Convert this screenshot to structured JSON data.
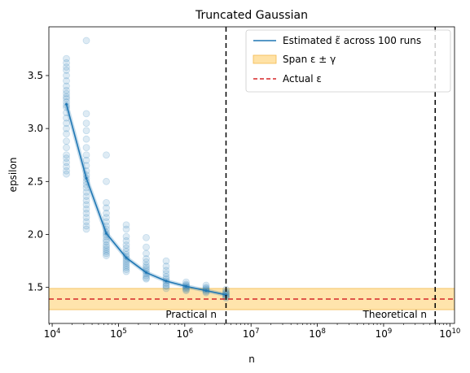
{
  "chart_data": {
    "type": "scatter",
    "title": "Truncated Gaussian",
    "xlabel": "n",
    "ylabel": "epsilon",
    "xscale": "log",
    "xlim_log10": [
      3.95,
      10.07
    ],
    "ylim": [
      1.16,
      3.96
    ],
    "x_ticks": [
      {
        "exp": 4,
        "label": "10",
        "sup": "4"
      },
      {
        "exp": 5,
        "label": "10",
        "sup": "5"
      },
      {
        "exp": 6,
        "label": "10",
        "sup": "6"
      },
      {
        "exp": 7,
        "label": "10",
        "sup": "7"
      },
      {
        "exp": 8,
        "label": "10",
        "sup": "8"
      },
      {
        "exp": 9,
        "label": "10",
        "sup": "9"
      },
      {
        "exp": 10,
        "label": "10",
        "sup": "10"
      }
    ],
    "y_ticks": [
      {
        "value": 1.5,
        "label": "1.5"
      },
      {
        "value": 2.0,
        "label": "2.0"
      },
      {
        "value": 2.5,
        "label": "2.5"
      },
      {
        "value": 3.0,
        "label": "3.0"
      },
      {
        "value": 3.5,
        "label": "3.5"
      }
    ],
    "estimated_line": {
      "name": "Estimated ε̃ across 100 runs",
      "color": "#1f77b4",
      "x": [
        16384,
        32768,
        65536,
        131072,
        262144,
        524288,
        1048576,
        2097152,
        4194304
      ],
      "y": [
        3.23,
        2.53,
        2.01,
        1.78,
        1.64,
        1.56,
        1.51,
        1.47,
        1.43
      ]
    },
    "runs_scatter": {
      "color": "#1f77b4",
      "groups": [
        {
          "x": 16384,
          "y": [
            3.66,
            3.62,
            3.58,
            3.55,
            3.5,
            3.45,
            3.4,
            3.36,
            3.33,
            3.3,
            3.28,
            3.25,
            3.22,
            3.2,
            3.15,
            3.1,
            3.05,
            3.0,
            2.95,
            2.88,
            2.82,
            2.75,
            2.72,
            2.68,
            2.64,
            2.6,
            2.57
          ]
        },
        {
          "x": 32768,
          "y": [
            3.83,
            3.14,
            3.05,
            2.98,
            2.9,
            2.82,
            2.75,
            2.7,
            2.65,
            2.6,
            2.56,
            2.53,
            2.5,
            2.47,
            2.44,
            2.4,
            2.36,
            2.32,
            2.28,
            2.24,
            2.2,
            2.16,
            2.12,
            2.08,
            2.05
          ]
        },
        {
          "x": 65536,
          "y": [
            2.75,
            2.5,
            2.3,
            2.25,
            2.2,
            2.16,
            2.12,
            2.08,
            2.05,
            2.02,
            2.0,
            1.98,
            1.95,
            1.93,
            1.9,
            1.88,
            1.86,
            1.84,
            1.82,
            1.8
          ]
        },
        {
          "x": 131072,
          "y": [
            2.09,
            2.05,
            1.98,
            1.94,
            1.9,
            1.87,
            1.84,
            1.81,
            1.79,
            1.77,
            1.75,
            1.73,
            1.71,
            1.69,
            1.67,
            1.65
          ]
        },
        {
          "x": 262144,
          "y": [
            1.97,
            1.88,
            1.82,
            1.77,
            1.74,
            1.71,
            1.69,
            1.67,
            1.65,
            1.63,
            1.61,
            1.59,
            1.58
          ]
        },
        {
          "x": 524288,
          "y": [
            1.75,
            1.7,
            1.66,
            1.63,
            1.6,
            1.58,
            1.56,
            1.54,
            1.52,
            1.51,
            1.49
          ]
        },
        {
          "x": 1048576,
          "y": [
            1.55,
            1.53,
            1.52,
            1.51,
            1.5,
            1.49,
            1.48,
            1.47
          ]
        },
        {
          "x": 2097152,
          "y": [
            1.52,
            1.5,
            1.49,
            1.48,
            1.47,
            1.46,
            1.45
          ]
        },
        {
          "x": 4194304,
          "y": [
            1.48,
            1.46,
            1.45,
            1.44,
            1.43,
            1.42,
            1.41,
            1.4
          ]
        }
      ]
    },
    "span": {
      "name": "Span ε ± γ",
      "low": 1.29,
      "high": 1.49,
      "color": "#ffd580",
      "edge": "#f3b94d"
    },
    "actual": {
      "name": "Actual ε",
      "value": 1.39,
      "color": "#d62728"
    },
    "vlines": [
      {
        "x": 4194304,
        "label": "Practical n"
      },
      {
        "x": 6000000000,
        "label": "Theoretical n"
      }
    ],
    "legend_location": "top-right"
  }
}
